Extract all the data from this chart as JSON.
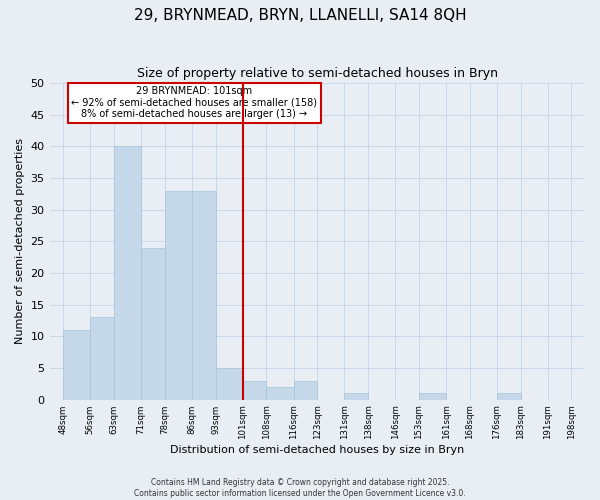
{
  "title": "29, BRYNMEAD, BRYN, LLANELLI, SA14 8QH",
  "subtitle": "Size of property relative to semi-detached houses in Bryn",
  "xlabel": "Distribution of semi-detached houses by size in Bryn",
  "ylabel": "Number of semi-detached properties",
  "bins": [
    48,
    56,
    63,
    71,
    78,
    86,
    93,
    101,
    108,
    116,
    123,
    131,
    138,
    146,
    153,
    161,
    168,
    176,
    183,
    191,
    198
  ],
  "counts": [
    11,
    13,
    40,
    24,
    33,
    33,
    5,
    3,
    2,
    3,
    0,
    1,
    0,
    0,
    1,
    0,
    0,
    1,
    0,
    0
  ],
  "tick_labels": [
    "48sqm",
    "56sqm",
    "63sqm",
    "71sqm",
    "78sqm",
    "86sqm",
    "93sqm",
    "101sqm",
    "108sqm",
    "116sqm",
    "123sqm",
    "131sqm",
    "138sqm",
    "146sqm",
    "153sqm",
    "161sqm",
    "168sqm",
    "176sqm",
    "183sqm",
    "191sqm",
    "198sqm"
  ],
  "bar_color": "#c5d8ea",
  "bar_edge_color": "#a8c4d8",
  "marker_value": 101,
  "marker_color": "#cc0000",
  "annotation_title": "29 BRYNMEAD: 101sqm",
  "annotation_line1": "← 92% of semi-detached houses are smaller (158)",
  "annotation_line2": "8% of semi-detached houses are larger (13) →",
  "annotation_box_color": "#ffffff",
  "annotation_box_edge": "#cc0000",
  "ylim": [
    0,
    50
  ],
  "yticks": [
    0,
    5,
    10,
    15,
    20,
    25,
    30,
    35,
    40,
    45,
    50
  ],
  "grid_color": "#c8d8e8",
  "background_color": "#e8eef4",
  "footnote": "Contains HM Land Registry data © Crown copyright and database right 2025.\nContains public sector information licensed under the Open Government Licence v3.0."
}
